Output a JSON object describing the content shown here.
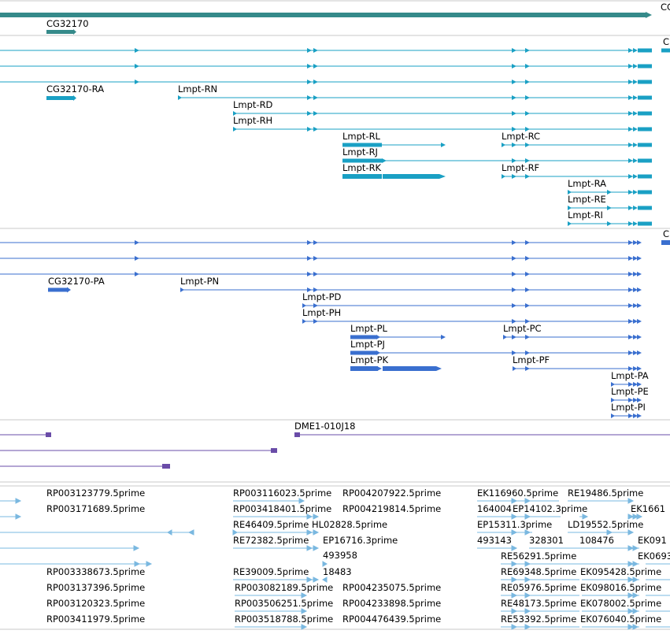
{
  "colors": {
    "gene": "#358a8a",
    "transcript": "#1aa0c4",
    "protein": "#3a6fcf",
    "clone": "#6a4ca8",
    "est": "#7ab8e0",
    "divider": "#b8b8b8"
  },
  "gene_track": {
    "labels": [
      {
        "name": "gene-label",
        "text": "CG32170"
      }
    ],
    "edge_labels": [
      {
        "text": "CG"
      }
    ]
  },
  "transcript_track": {
    "labels": [
      {
        "name": "transcript-label",
        "text": "CG32170-RA"
      },
      {
        "name": "transcript-label",
        "text": "Lmpt-RN"
      },
      {
        "name": "transcript-label",
        "text": "Lmpt-RD"
      },
      {
        "name": "transcript-label",
        "text": "Lmpt-RH"
      },
      {
        "name": "transcript-label",
        "text": "Lmpt-RL"
      },
      {
        "name": "transcript-label",
        "text": "Lmpt-RC"
      },
      {
        "name": "transcript-label",
        "text": "Lmpt-RJ"
      },
      {
        "name": "transcript-label",
        "text": "Lmpt-RK"
      },
      {
        "name": "transcript-label",
        "text": "Lmpt-RF"
      },
      {
        "name": "transcript-label",
        "text": "Lmpt-RA"
      },
      {
        "name": "transcript-label",
        "text": "Lmpt-RE"
      },
      {
        "name": "transcript-label",
        "text": "Lmpt-RI"
      }
    ],
    "edge_labels": [
      {
        "text": "C"
      }
    ]
  },
  "protein_track": {
    "labels": [
      {
        "name": "protein-label",
        "text": "CG32170-PA"
      },
      {
        "name": "protein-label",
        "text": "Lmpt-PN"
      },
      {
        "name": "protein-label",
        "text": "Lmpt-PD"
      },
      {
        "name": "protein-label",
        "text": "Lmpt-PH"
      },
      {
        "name": "protein-label",
        "text": "Lmpt-PL"
      },
      {
        "name": "protein-label",
        "text": "Lmpt-PC"
      },
      {
        "name": "protein-label",
        "text": "Lmpt-PJ"
      },
      {
        "name": "protein-label",
        "text": "Lmpt-PK"
      },
      {
        "name": "protein-label",
        "text": "Lmpt-PF"
      },
      {
        "name": "protein-label",
        "text": "Lmpt-PA"
      },
      {
        "name": "protein-label",
        "text": "Lmpt-PE"
      },
      {
        "name": "protein-label",
        "text": "Lmpt-PI"
      }
    ],
    "edge_labels": [
      {
        "text": "C"
      }
    ]
  },
  "clone_track": {
    "labels": [
      {
        "name": "clone-label",
        "text": "DME1-010J18"
      }
    ]
  },
  "est_track": {
    "labels": [
      {
        "name": "est-label",
        "text": "RP003123779.5prime"
      },
      {
        "name": "est-label",
        "text": "RP003171689.5prime"
      },
      {
        "name": "est-label",
        "text": "RP003338673.5prime"
      },
      {
        "name": "est-label",
        "text": "RP003137396.5prime"
      },
      {
        "name": "est-label",
        "text": "RP003120323.5prime"
      },
      {
        "name": "est-label",
        "text": "RP003411979.5prime"
      },
      {
        "name": "est-label",
        "text": "RP003116023.5prime"
      },
      {
        "name": "est-label",
        "text": "RP003418401.5prime"
      },
      {
        "name": "est-label",
        "text": "RE46409.5prime"
      },
      {
        "name": "est-label",
        "text": "RE72382.5prime"
      },
      {
        "name": "est-label",
        "text": "RE39009.5prime"
      },
      {
        "name": "est-label",
        "text": "RP003082189.5prime"
      },
      {
        "name": "est-label",
        "text": "RP003506251.5prime"
      },
      {
        "name": "est-label",
        "text": "RP003518788.5prime"
      },
      {
        "name": "est-label",
        "text": "RP004207922.5prime"
      },
      {
        "name": "est-label",
        "text": "RP004219814.5prime"
      },
      {
        "name": "est-label",
        "text": "HL02828.5prime"
      },
      {
        "name": "est-label",
        "text": "EP16716.3prime"
      },
      {
        "name": "est-label",
        "text": "493958"
      },
      {
        "name": "est-label",
        "text": "18483"
      },
      {
        "name": "est-label",
        "text": "RP004235075.5prime"
      },
      {
        "name": "est-label",
        "text": "RP004233898.5prime"
      },
      {
        "name": "est-label",
        "text": "RP004476439.5prime"
      },
      {
        "name": "est-label",
        "text": "EK116960.5prime"
      },
      {
        "name": "est-label",
        "text": "164004"
      },
      {
        "name": "est-label",
        "text": "EP15311.3prime"
      },
      {
        "name": "est-label",
        "text": "493143"
      },
      {
        "name": "est-label",
        "text": "RE19486.5prime"
      },
      {
        "name": "est-label",
        "text": "EP14102.3prime"
      },
      {
        "name": "est-label",
        "text": "LD19552.5prime"
      },
      {
        "name": "est-label",
        "text": "328301"
      },
      {
        "name": "est-label",
        "text": "108476"
      },
      {
        "name": "est-label",
        "text": "RE56291.5prime"
      },
      {
        "name": "est-label",
        "text": "RE69348.5prime"
      },
      {
        "name": "est-label",
        "text": "RE05976.5prime"
      },
      {
        "name": "est-label",
        "text": "RE48173.5prime"
      },
      {
        "name": "est-label",
        "text": "RE53392.5prime"
      },
      {
        "name": "est-label",
        "text": "EK095428.5prime"
      },
      {
        "name": "est-label",
        "text": "EK098016.5prime"
      },
      {
        "name": "est-label",
        "text": "EK078002.5prime"
      },
      {
        "name": "est-label",
        "text": "EK076040.5prime"
      },
      {
        "name": "est-label",
        "text": "EK1661"
      },
      {
        "name": "est-label",
        "text": "EK091"
      },
      {
        "name": "est-label",
        "text": "EK0693"
      }
    ]
  }
}
